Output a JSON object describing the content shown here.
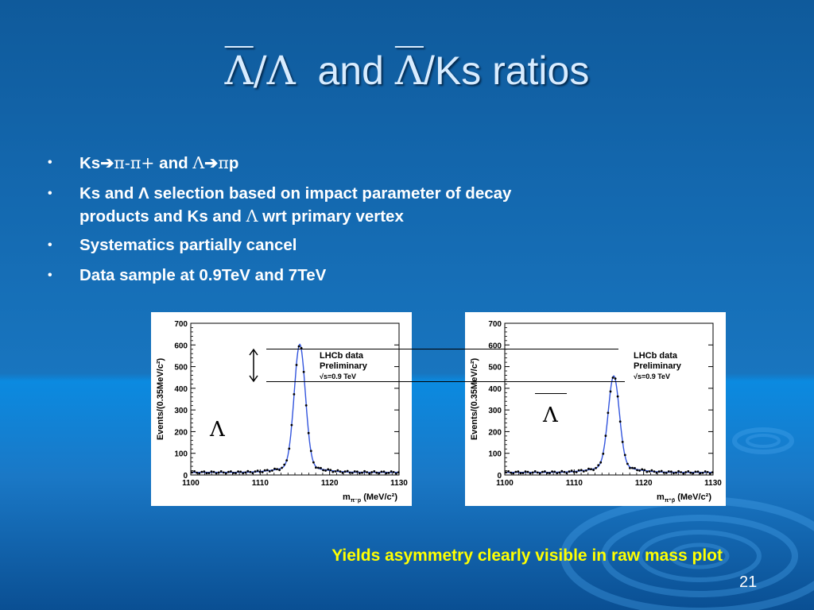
{
  "title": {
    "sym1": "Λ",
    "slash1": "/",
    "sym2": "Λ",
    "and": "and",
    "sym3": "Λ",
    "rest": "/Ks ratios"
  },
  "bullets": {
    "b1": {
      "ks": "Ks",
      "arrow": "➔",
      "pi_minus": "π-",
      "pi_plus": "π+",
      "and": "and",
      "lambda": "Λ",
      "arrow2": "➔",
      "pi": "π",
      "p": "p"
    },
    "b2": {
      "line1": "Ks and Λ selection based on impact parameter of decay",
      "line2a": "products and  Ks and",
      "lambda": "Λ",
      "line2b": "wrt primary vertex"
    },
    "b3": "Systematics partially cancel",
    "b4": "Data sample at  0.9TeV and 7TeV"
  },
  "overlay": {
    "left_symbol": "Λ",
    "right_symbol": "Λ"
  },
  "caption": "Yields asymmetry clearly visible in raw mass plot",
  "page_number": "21",
  "colors": {
    "caption": "#ffff00",
    "title": "#d8ecff",
    "fit_curve": "#3355dd"
  },
  "chart_data": [
    {
      "type": "scatter",
      "ylabel": "Events/(0.35MeV/c²)",
      "xlabel": "m",
      "xlabel_sub": "π⁻p",
      "xlabel_unit": "(MeV/c²)",
      "legend": [
        "LHCb data",
        "Preliminary",
        "√s=0.9 TeV"
      ],
      "xlim": [
        1100,
        1130
      ],
      "ylim": [
        0,
        700
      ],
      "xticks": [
        1100,
        1110,
        1120,
        1130
      ],
      "yticks": [
        0,
        100,
        200,
        300,
        400,
        500,
        600,
        700
      ],
      "peak_x": 1115.7,
      "peak_y": 578,
      "fit": "line"
    },
    {
      "type": "scatter",
      "ylabel": "Events/(0.35MeV/c²)",
      "xlabel": "m",
      "xlabel_sub": "π⁺p̄",
      "xlabel_unit": "(MeV/c²)",
      "legend": [
        "LHCb data",
        "Preliminary",
        "√s=0.9 TeV"
      ],
      "xlim": [
        1100,
        1130
      ],
      "ylim": [
        0,
        700
      ],
      "xticks": [
        1100,
        1110,
        1120,
        1130
      ],
      "yticks": [
        0,
        100,
        200,
        300,
        400,
        500,
        600,
        700
      ],
      "peak_x": 1115.7,
      "peak_y": 432,
      "fit": "line"
    }
  ]
}
